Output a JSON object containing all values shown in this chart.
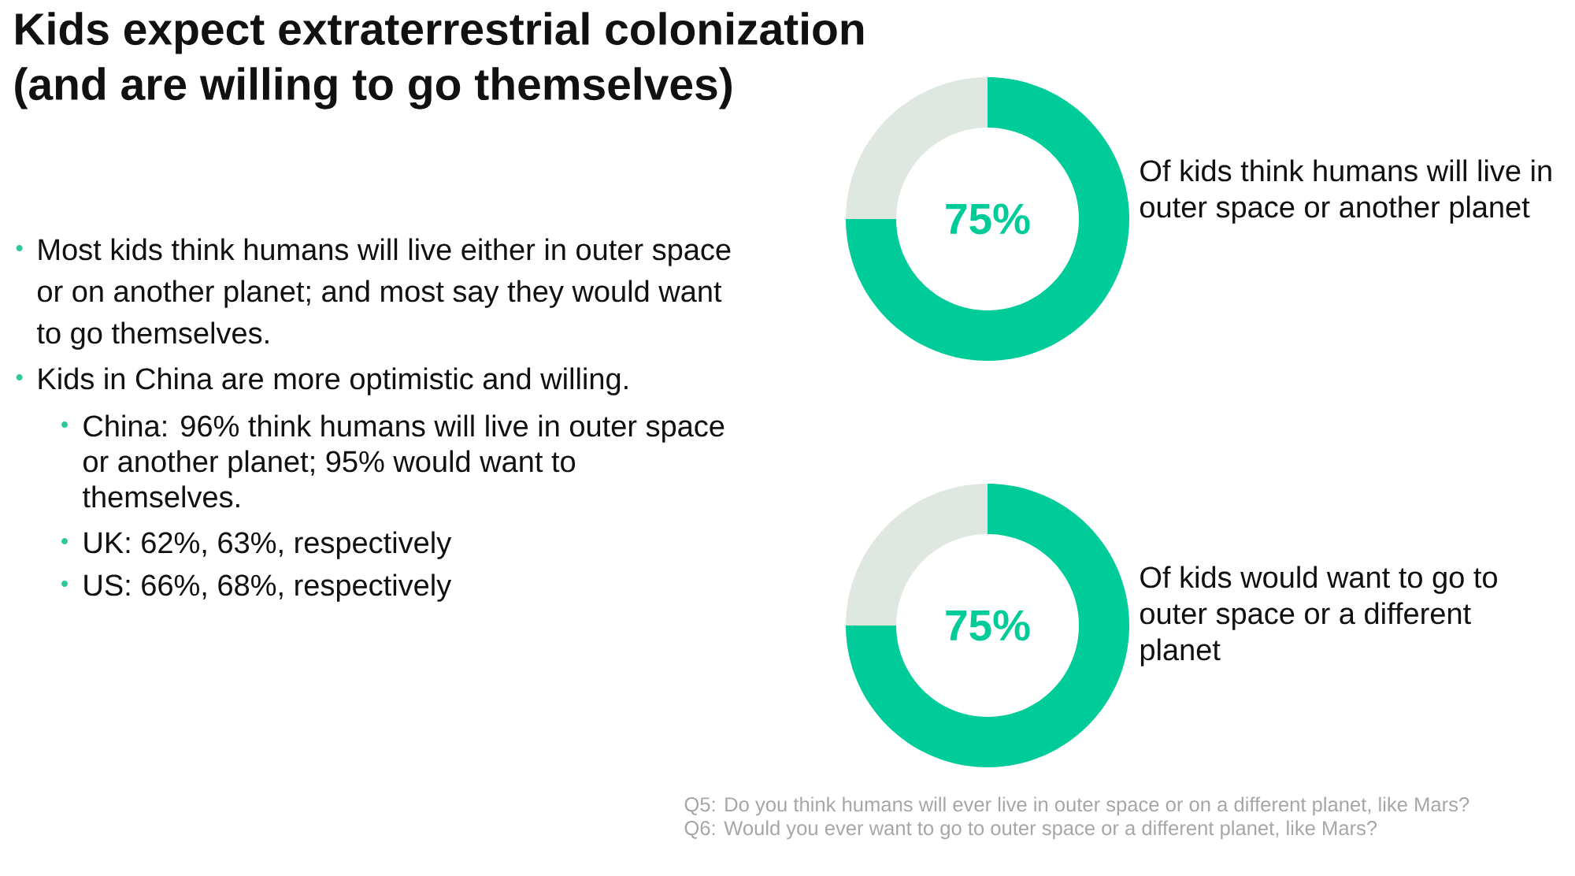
{
  "chart_data": [
    {
      "type": "other",
      "title": "Kids expect extraterrestrial colonization (and are willing to go themselves)",
      "annotations": [
        "Most kids think humans will live either in outer space or on another planet; and most say they would want to go themselves.",
        "Kids in China are more optimistic and willing.",
        "China: 96% think humans will live in outer space or another planet; 95% would want to themselves.",
        "UK: 62%, 63%, respectively",
        "US: 66%, 68%, respectively"
      ]
    },
    {
      "type": "donut",
      "categories": [
        "Of kids think humans will live in outer space or another planet",
        null
      ],
      "values": [
        75,
        25
      ],
      "colors": [
        "#00cc99",
        "#dfe7e1"
      ],
      "value_labels": [
        "75%",
        null
      ]
    },
    {
      "type": "donut",
      "categories": [
        "Of kids would want to go to outer space or a different planet",
        null
      ],
      "values": [
        75,
        25
      ],
      "colors": [
        "#00cc99",
        "#dfe7e1"
      ],
      "value_labels": [
        "75%",
        null
      ],
      "annotations": [
        "Q5: Do you think humans will ever live in outer space or on a different planet, like Mars?",
        "Q6: Would you ever want to go to outer space or a different planet, like Mars?"
      ]
    }
  ]
}
